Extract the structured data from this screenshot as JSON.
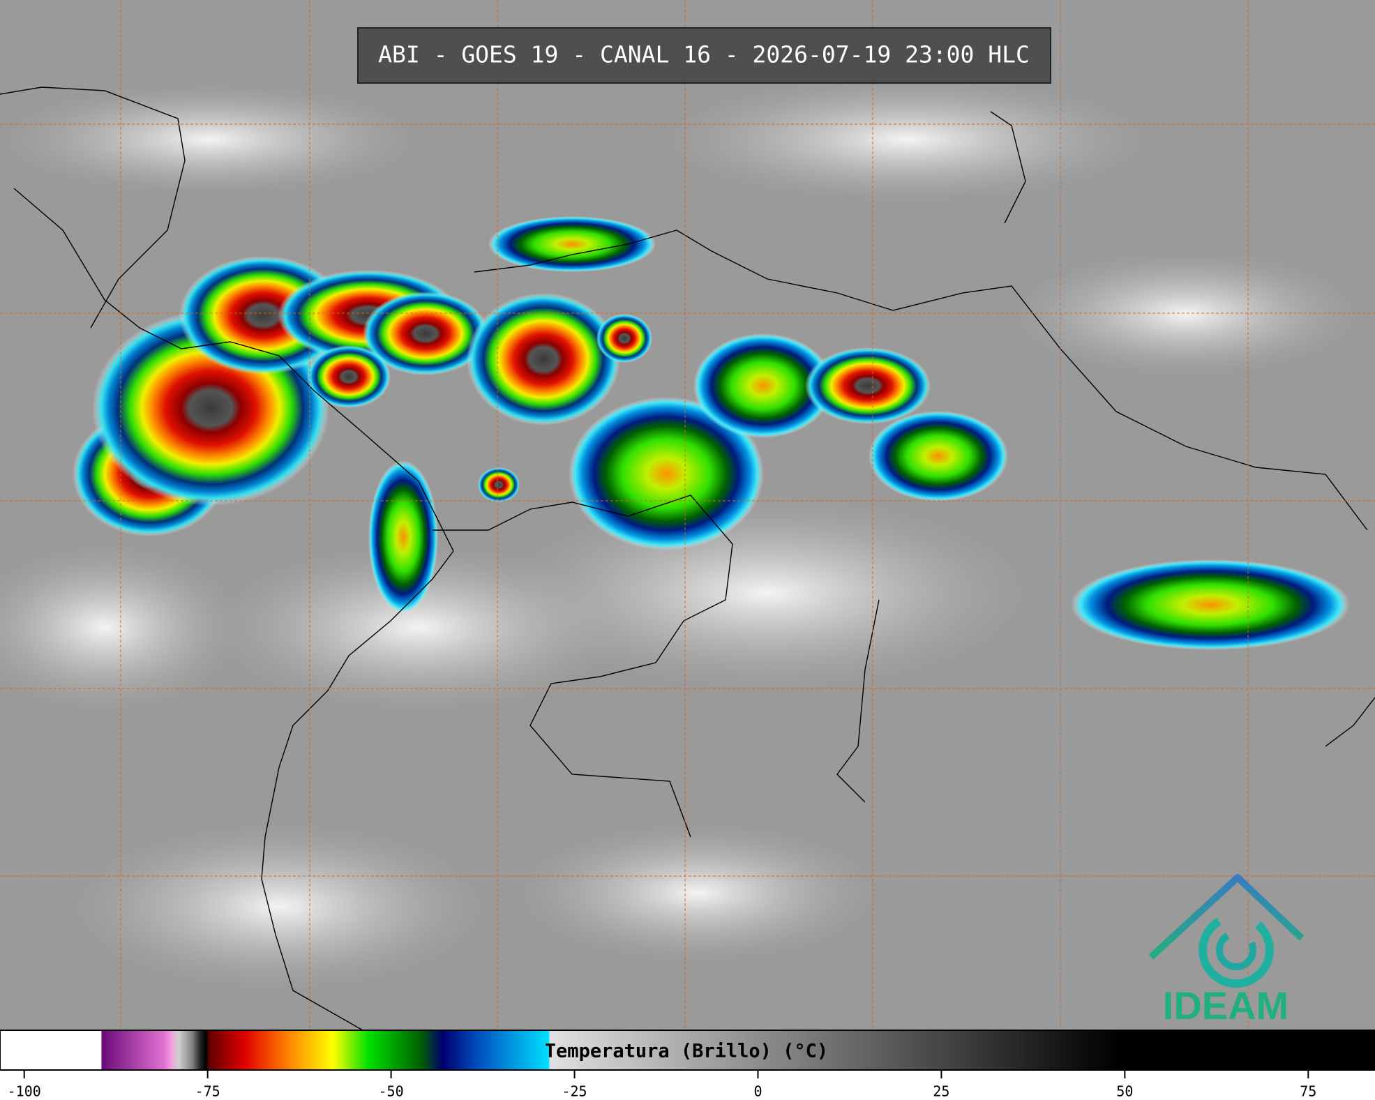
{
  "header": {
    "title": "ABI - GOES 19 - CANAL 16 - 2026-07-19 23:00 HLC"
  },
  "colorbar": {
    "label": "Temperatura (Brillo) (°C)",
    "lim": [
      -103.3,
      84.1
    ],
    "ticks": [
      -100,
      -75,
      -50,
      -25,
      0,
      25,
      50,
      75
    ]
  },
  "logo": {
    "text": "IDEAM"
  }
}
